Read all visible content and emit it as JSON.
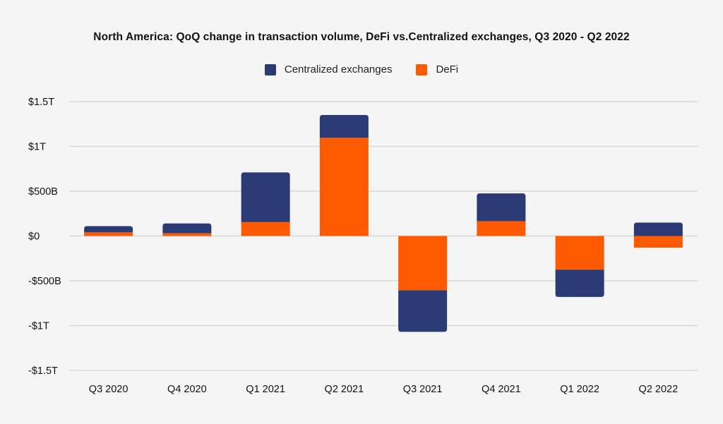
{
  "chart_data": {
    "type": "bar",
    "stacked": true,
    "title": "North America: QoQ change in transaction volume, DeFi vs.Centralized exchanges, Q3 2020 - Q2 2022",
    "xlabel": "",
    "ylabel": "",
    "categories": [
      "Q3 2020",
      "Q4 2020",
      "Q1 2021",
      "Q2 2021",
      "Q3 2021",
      "Q4 2021",
      "Q1 2022",
      "Q2 2022"
    ],
    "series": [
      {
        "name": "DeFi",
        "color": "#ff5a00",
        "values": [
          40,
          30,
          155,
          1095,
          -605,
          165,
          -375,
          -130
        ]
      },
      {
        "name": "Centralized exchanges",
        "color": "#2a3a75",
        "values": [
          70,
          110,
          555,
          255,
          -465,
          310,
          -305,
          150
        ]
      }
    ],
    "legend_order": [
      "Centralized exchanges",
      "DeFi"
    ],
    "legend_position": "top-center",
    "ylim": [
      -1500,
      1500
    ],
    "yticks": [
      1500,
      1000,
      500,
      0,
      -500,
      -1000,
      -1500
    ],
    "ytick_labels": [
      "$1.5T",
      "$1T",
      "$500B",
      "$0",
      "-$500B",
      "-$1T",
      "-$1.5T"
    ],
    "units": "billions USD",
    "grid": true
  }
}
